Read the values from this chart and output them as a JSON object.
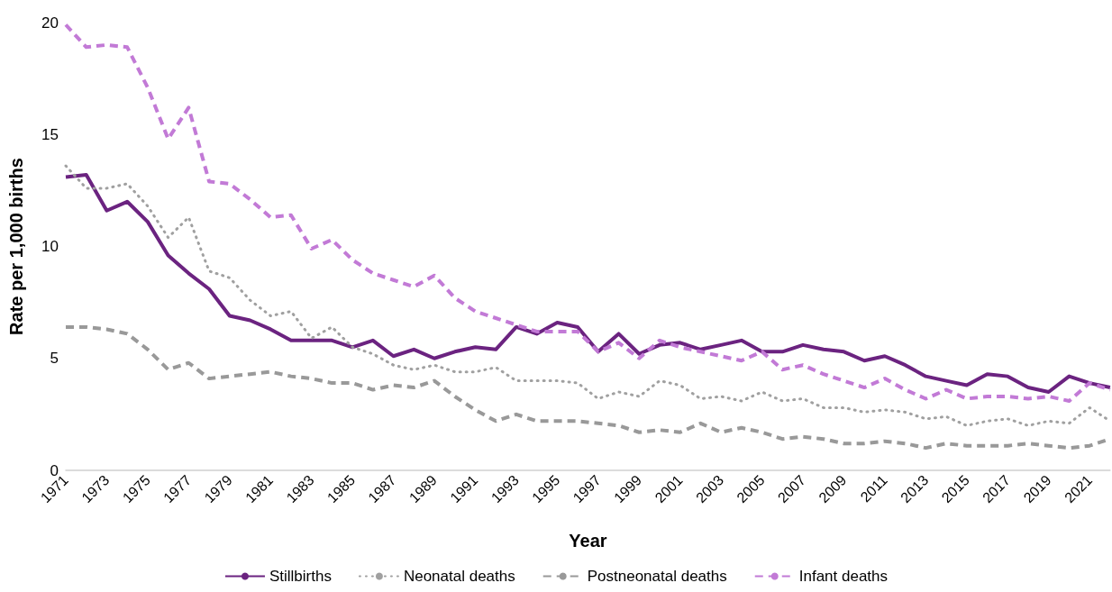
{
  "chart_data": {
    "type": "line",
    "xlabel": "Year",
    "ylabel": "Rate per 1,000 births",
    "categories": [
      "1971",
      null,
      "1973",
      null,
      "1975",
      null,
      "1977",
      null,
      "1979",
      null,
      "1981",
      null,
      "1983",
      null,
      "1985",
      null,
      "1987",
      null,
      "1989",
      null,
      "1991",
      null,
      "1993",
      null,
      "1995",
      null,
      "1997",
      null,
      "1999",
      null,
      "2001",
      null,
      "2003",
      null,
      "2005",
      null,
      "2007",
      null,
      "2009",
      null,
      "2011",
      null,
      "2013",
      null,
      "2015",
      null,
      "2017",
      null,
      "2019",
      null,
      "2021",
      null
    ],
    "series": [
      {
        "name": "Stillbirths",
        "color": "#6b2380",
        "line_style": "solid",
        "values": [
          13.1,
          13.2,
          11.6,
          12.0,
          11.1,
          9.6,
          8.8,
          8.1,
          6.9,
          6.7,
          6.3,
          5.8,
          5.8,
          5.8,
          5.5,
          5.8,
          5.1,
          5.4,
          5.0,
          5.3,
          5.5,
          5.4,
          6.4,
          6.1,
          6.6,
          6.4,
          5.3,
          6.1,
          5.2,
          5.6,
          5.7,
          5.4,
          5.6,
          5.8,
          5.3,
          5.3,
          5.6,
          5.4,
          5.3,
          4.9,
          5.1,
          4.7,
          4.2,
          4.0,
          3.8,
          4.3,
          4.2,
          3.7,
          3.5,
          4.2,
          3.9,
          3.7
        ]
      },
      {
        "name": "Neonatal deaths",
        "color": "#a0a0a0",
        "line_style": "dotted",
        "values": [
          13.6,
          12.6,
          12.6,
          12.8,
          11.8,
          10.4,
          11.3,
          8.9,
          8.6,
          7.6,
          6.9,
          7.1,
          5.9,
          6.4,
          5.5,
          5.2,
          4.7,
          4.5,
          4.7,
          4.4,
          4.4,
          4.6,
          4.0,
          4.0,
          4.0,
          3.9,
          3.2,
          3.5,
          3.3,
          4.0,
          3.8,
          3.2,
          3.3,
          3.1,
          3.5,
          3.1,
          3.2,
          2.8,
          2.8,
          2.6,
          2.7,
          2.6,
          2.3,
          2.4,
          2.0,
          2.2,
          2.3,
          2.0,
          2.2,
          2.1,
          2.8,
          2.2
        ]
      },
      {
        "name": "Postneonatal deaths",
        "color": "#999999",
        "line_style": "dashed",
        "values": [
          6.4,
          6.4,
          6.3,
          6.1,
          5.4,
          4.5,
          4.8,
          4.1,
          4.2,
          4.3,
          4.4,
          4.2,
          4.1,
          3.9,
          3.9,
          3.6,
          3.8,
          3.7,
          4.0,
          3.3,
          2.7,
          2.2,
          2.5,
          2.2,
          2.2,
          2.2,
          2.1,
          2.0,
          1.7,
          1.8,
          1.7,
          2.1,
          1.7,
          1.9,
          1.7,
          1.4,
          1.5,
          1.4,
          1.2,
          1.2,
          1.3,
          1.2,
          1.0,
          1.2,
          1.1,
          1.1,
          1.1,
          1.2,
          1.1,
          1.0,
          1.1,
          1.4
        ]
      },
      {
        "name": "Infant deaths",
        "color": "#c27ad6",
        "line_style": "dashed",
        "values": [
          19.9,
          18.9,
          19.0,
          18.9,
          17.1,
          14.8,
          16.2,
          12.9,
          12.8,
          12.1,
          11.3,
          11.4,
          9.9,
          10.3,
          9.4,
          8.8,
          8.5,
          8.2,
          8.7,
          7.7,
          7.1,
          6.8,
          6.5,
          6.2,
          6.2,
          6.2,
          5.3,
          5.7,
          5.0,
          5.8,
          5.5,
          5.3,
          5.1,
          4.9,
          5.3,
          4.5,
          4.7,
          4.3,
          4.0,
          3.7,
          4.1,
          3.6,
          3.2,
          3.6,
          3.2,
          3.3,
          3.3,
          3.2,
          3.3,
          3.1,
          3.9,
          3.6
        ]
      }
    ],
    "ylim": [
      0,
      20
    ],
    "yticks": [
      0,
      5,
      10,
      15,
      20
    ],
    "grid": false,
    "legend": "bottom",
    "marker": "none"
  }
}
